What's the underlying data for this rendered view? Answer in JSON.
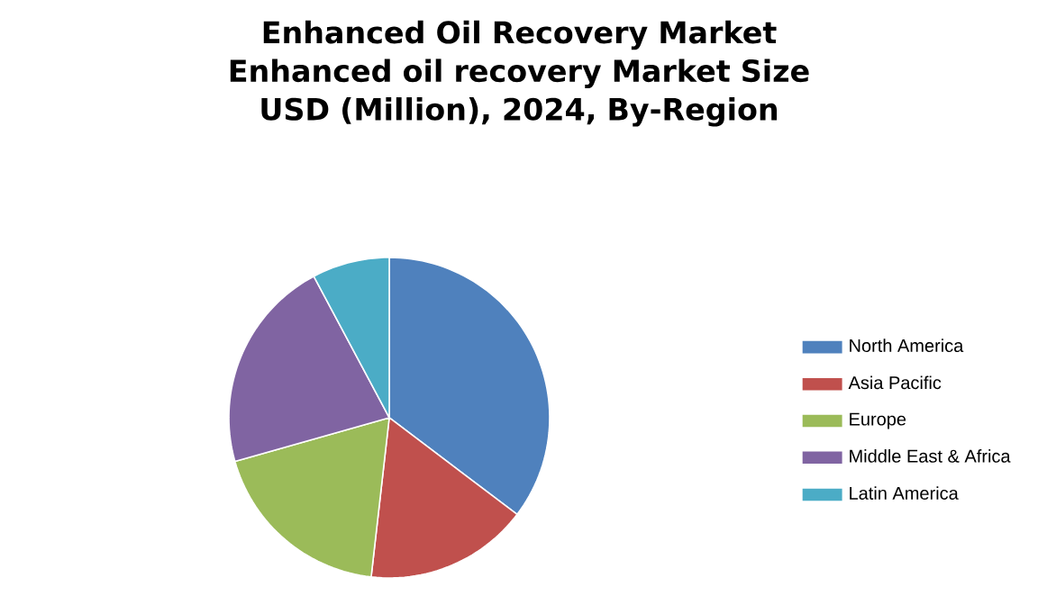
{
  "chart_data": {
    "type": "pie",
    "title": "Enhanced Oil Recovery Market Enhanced oil recovery Market Size USD (Million), 2024, By-Region",
    "categories": [
      "North America",
      "Asia Pacific",
      "Europe",
      "Middle East & Africa",
      "Latin America"
    ],
    "values": [
      35.3,
      16.5,
      18.8,
      21.6,
      7.8
    ],
    "colors": [
      "#4f81bd",
      "#c0504d",
      "#9bbb59",
      "#8064a2",
      "#4bacc6"
    ],
    "legend": "right"
  }
}
